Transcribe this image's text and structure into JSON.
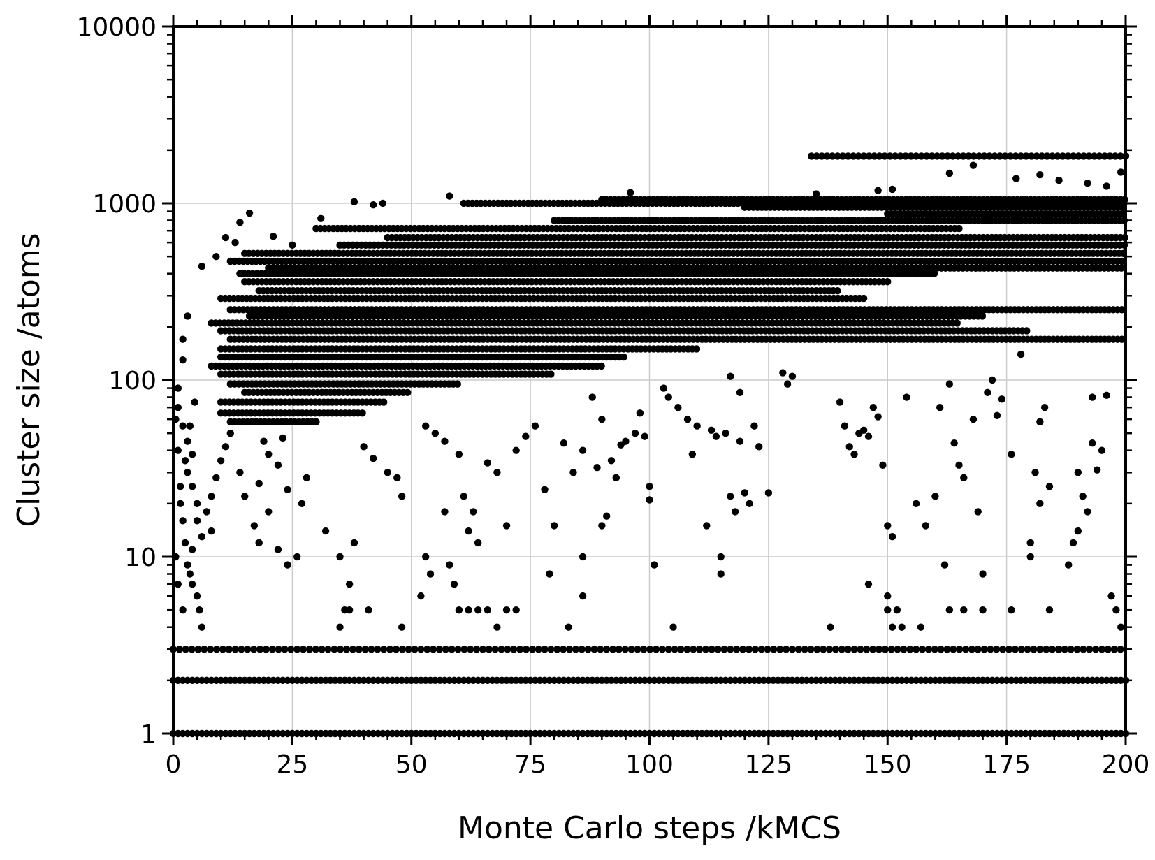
{
  "chart_data": {
    "type": "scatter",
    "title": "",
    "xlabel": "Monte Carlo steps /kMCS",
    "ylabel": "Cluster size /atoms",
    "xlim": [
      0,
      200
    ],
    "ylim": [
      1,
      10000
    ],
    "yscale": "log",
    "grid": true,
    "legend": "none",
    "marker_color": "#000000",
    "xticks": [
      0,
      25,
      50,
      75,
      100,
      125,
      150,
      175,
      200
    ],
    "xtick_labels": [
      "0",
      "25",
      "50",
      "75",
      "100",
      "125",
      "150",
      "175",
      "200"
    ],
    "yticks": [
      1,
      10,
      100,
      1000,
      10000
    ],
    "ytick_labels": [
      "1",
      "10",
      "100",
      "1000",
      "10000"
    ],
    "series": [
      {
        "bands": [
          {
            "y": 1,
            "x": [
              0,
              200
            ],
            "step": 1
          },
          {
            "y": 2,
            "x": [
              0,
              200
            ],
            "step": 1
          },
          {
            "y": 3,
            "x": [
              0,
              200
            ],
            "step": 1.3
          },
          {
            "y": 1850,
            "x": [
              134,
              200
            ],
            "step": 1.1
          },
          {
            "y": 1000,
            "x": [
              61,
              200
            ],
            "step": 0.9
          },
          {
            "y": 1050,
            "x": [
              90,
              200
            ],
            "step": 0.9
          },
          {
            "y": 950,
            "x": [
              120,
              200
            ],
            "step": 0.9
          },
          {
            "y": 870,
            "x": [
              150,
              200
            ],
            "step": 0.9
          },
          {
            "y": 800,
            "x": [
              80,
              200
            ],
            "step": 0.9
          },
          {
            "y": 720,
            "x": [
              30,
              165
            ],
            "step": 0.9
          },
          {
            "y": 640,
            "x": [
              45,
              200
            ],
            "step": 0.9
          },
          {
            "y": 580,
            "x": [
              35,
              200
            ],
            "step": 0.9
          },
          {
            "y": 520,
            "x": [
              15,
              200
            ],
            "step": 0.9
          },
          {
            "y": 470,
            "x": [
              12,
              200
            ],
            "step": 0.9
          },
          {
            "y": 430,
            "x": [
              20,
              200
            ],
            "step": 0.9
          },
          {
            "y": 400,
            "x": [
              14,
              160
            ],
            "step": 0.9
          },
          {
            "y": 360,
            "x": [
              15,
              150
            ],
            "step": 0.9
          },
          {
            "y": 320,
            "x": [
              18,
              140
            ],
            "step": 0.9
          },
          {
            "y": 290,
            "x": [
              10,
              145
            ],
            "step": 0.9
          },
          {
            "y": 250,
            "x": [
              12,
              200
            ],
            "step": 0.9
          },
          {
            "y": 230,
            "x": [
              16,
              170
            ],
            "step": 0.9
          },
          {
            "y": 210,
            "x": [
              8,
              165
            ],
            "step": 0.9
          },
          {
            "y": 190,
            "x": [
              10,
              180
            ],
            "step": 0.9
          },
          {
            "y": 170,
            "x": [
              12,
              200
            ],
            "step": 0.9
          },
          {
            "y": 150,
            "x": [
              10,
              110
            ],
            "step": 0.9
          },
          {
            "y": 135,
            "x": [
              10,
              95
            ],
            "step": 0.9
          },
          {
            "y": 120,
            "x": [
              8,
              90
            ],
            "step": 0.9
          },
          {
            "y": 108,
            "x": [
              10,
              80
            ],
            "step": 0.9
          },
          {
            "y": 95,
            "x": [
              12,
              60
            ],
            "step": 0.9
          },
          {
            "y": 85,
            "x": [
              15,
              50
            ],
            "step": 0.9
          },
          {
            "y": 75,
            "x": [
              10,
              45
            ],
            "step": 0.9
          },
          {
            "y": 65,
            "x": [
              10,
              40
            ],
            "step": 0.9
          },
          {
            "y": 58,
            "x": [
              12,
              30
            ],
            "step": 0.9
          }
        ],
        "scatter": [
          [
            16,
            880
          ],
          [
            14,
            780
          ],
          [
            13,
            600
          ],
          [
            11,
            640
          ],
          [
            9,
            500
          ],
          [
            6,
            440
          ],
          [
            21,
            650
          ],
          [
            25,
            580
          ],
          [
            31,
            820
          ],
          [
            38,
            1020
          ],
          [
            42,
            980
          ],
          [
            44,
            1000
          ],
          [
            58,
            1100
          ],
          [
            96,
            1150
          ],
          [
            135,
            1130
          ],
          [
            148,
            1180
          ],
          [
            151,
            1200
          ],
          [
            163,
            1480
          ],
          [
            168,
            1640
          ],
          [
            177,
            1380
          ],
          [
            182,
            1450
          ],
          [
            186,
            1350
          ],
          [
            192,
            1300
          ],
          [
            196,
            1250
          ],
          [
            199,
            1500
          ],
          [
            2,
            170
          ],
          [
            3,
            230
          ],
          [
            2,
            130
          ],
          [
            1,
            90
          ],
          [
            1,
            70
          ],
          [
            2,
            55
          ],
          [
            3,
            45
          ],
          [
            4,
            38
          ],
          [
            3,
            30
          ],
          [
            4,
            25
          ],
          [
            5,
            20
          ],
          [
            5,
            16
          ],
          [
            6,
            13
          ],
          [
            4,
            11
          ],
          [
            7,
            18
          ],
          [
            8,
            14
          ],
          [
            8,
            22
          ],
          [
            9,
            28
          ],
          [
            10,
            35
          ],
          [
            11,
            42
          ],
          [
            12,
            50
          ],
          [
            0.5,
            60
          ],
          [
            1,
            40
          ],
          [
            1.5,
            25
          ],
          [
            2,
            16
          ],
          [
            2.5,
            12
          ],
          [
            3,
            9
          ],
          [
            3.5,
            8
          ],
          [
            4,
            7
          ],
          [
            5,
            6
          ],
          [
            5.5,
            5
          ],
          [
            6,
            4
          ],
          [
            2,
            5
          ],
          [
            1,
            7
          ],
          [
            0.5,
            10
          ],
          [
            1.5,
            20
          ],
          [
            2.5,
            35
          ],
          [
            3.5,
            55
          ],
          [
            4.5,
            75
          ],
          [
            14,
            30
          ],
          [
            15,
            22
          ],
          [
            17,
            15
          ],
          [
            18,
            12
          ],
          [
            20,
            18
          ],
          [
            22,
            11
          ],
          [
            24,
            9
          ],
          [
            26,
            10
          ],
          [
            18,
            26
          ],
          [
            20,
            38
          ],
          [
            22,
            33
          ],
          [
            24,
            24
          ],
          [
            27,
            20
          ],
          [
            28,
            28
          ],
          [
            19,
            45
          ],
          [
            23,
            47
          ],
          [
            36,
            5
          ],
          [
            37,
            5
          ],
          [
            37,
            7
          ],
          [
            35,
            10
          ],
          [
            32,
            14
          ],
          [
            38,
            12
          ],
          [
            40,
            42
          ],
          [
            42,
            36
          ],
          [
            45,
            30
          ],
          [
            47,
            28
          ],
          [
            48,
            22
          ],
          [
            41,
            5
          ],
          [
            48,
            4
          ],
          [
            35,
            4
          ],
          [
            53,
            55
          ],
          [
            55,
            50
          ],
          [
            57,
            45
          ],
          [
            60,
            38
          ],
          [
            61,
            22
          ],
          [
            63,
            18
          ],
          [
            62,
            14
          ],
          [
            64,
            12
          ],
          [
            66,
            34
          ],
          [
            68,
            30
          ],
          [
            70,
            15
          ],
          [
            72,
            40
          ],
          [
            74,
            48
          ],
          [
            76,
            55
          ],
          [
            78,
            24
          ],
          [
            80,
            15
          ],
          [
            79,
            8
          ],
          [
            82,
            44
          ],
          [
            83,
            4
          ],
          [
            84,
            30
          ],
          [
            86,
            40
          ],
          [
            86,
            10
          ],
          [
            86,
            6
          ],
          [
            88,
            80
          ],
          [
            89,
            32
          ],
          [
            90,
            60
          ],
          [
            90,
            15
          ],
          [
            91,
            17
          ],
          [
            92,
            35
          ],
          [
            93,
            28
          ],
          [
            94,
            43
          ],
          [
            95,
            45
          ],
          [
            97,
            50
          ],
          [
            98,
            65
          ],
          [
            99,
            48
          ],
          [
            100,
            25
          ],
          [
            100,
            21
          ],
          [
            101,
            9
          ],
          [
            57,
            18
          ],
          [
            58,
            9
          ],
          [
            59,
            7
          ],
          [
            60,
            5
          ],
          [
            62,
            5
          ],
          [
            64,
            5
          ],
          [
            66,
            5
          ],
          [
            68,
            4
          ],
          [
            70,
            5
          ],
          [
            72,
            5
          ],
          [
            52,
            6
          ],
          [
            53,
            10
          ],
          [
            54,
            8
          ],
          [
            103,
            90
          ],
          [
            104,
            80
          ],
          [
            106,
            70
          ],
          [
            108,
            60
          ],
          [
            109,
            38
          ],
          [
            110,
            55
          ],
          [
            112,
            15
          ],
          [
            113,
            52
          ],
          [
            114,
            48
          ],
          [
            115,
            10
          ],
          [
            115,
            8
          ],
          [
            116,
            50
          ],
          [
            117,
            22
          ],
          [
            118,
            18
          ],
          [
            119,
            45
          ],
          [
            120,
            23
          ],
          [
            121,
            20
          ],
          [
            123,
            42
          ],
          [
            125,
            23
          ],
          [
            105,
            4
          ],
          [
            117,
            105
          ],
          [
            119,
            85
          ],
          [
            122,
            55
          ],
          [
            128,
            110
          ],
          [
            129,
            95
          ],
          [
            130,
            105
          ],
          [
            138,
            4
          ],
          [
            140,
            75
          ],
          [
            141,
            55
          ],
          [
            142,
            42
          ],
          [
            143,
            38
          ],
          [
            144,
            50
          ],
          [
            145,
            52
          ],
          [
            146,
            48
          ],
          [
            147,
            70
          ],
          [
            148,
            62
          ],
          [
            149,
            33
          ],
          [
            150,
            15
          ],
          [
            151,
            13
          ],
          [
            150,
            6
          ],
          [
            150,
            5
          ],
          [
            151,
            4
          ],
          [
            152,
            5
          ],
          [
            153,
            4
          ],
          [
            146,
            7
          ],
          [
            154,
            80
          ],
          [
            156,
            20
          ],
          [
            157,
            4
          ],
          [
            158,
            15
          ],
          [
            160,
            22
          ],
          [
            161,
            70
          ],
          [
            162,
            9
          ],
          [
            163,
            95
          ],
          [
            164,
            44
          ],
          [
            165,
            33
          ],
          [
            166,
            28
          ],
          [
            168,
            60
          ],
          [
            169,
            18
          ],
          [
            170,
            8
          ],
          [
            171,
            85
          ],
          [
            172,
            100
          ],
          [
            173,
            63
          ],
          [
            174,
            78
          ],
          [
            176,
            38
          ],
          [
            178,
            140
          ],
          [
            180,
            12
          ],
          [
            180,
            10
          ],
          [
            181,
            30
          ],
          [
            182,
            20
          ],
          [
            182,
            58
          ],
          [
            183,
            70
          ],
          [
            184,
            25
          ],
          [
            186,
            3
          ],
          [
            188,
            9
          ],
          [
            189,
            12
          ],
          [
            190,
            30
          ],
          [
            191,
            22
          ],
          [
            192,
            18
          ],
          [
            193,
            44
          ],
          [
            194,
            31
          ],
          [
            195,
            40
          ],
          [
            197,
            6
          ],
          [
            198,
            5
          ],
          [
            199,
            4
          ],
          [
            196,
            82
          ],
          [
            193,
            80
          ],
          [
            190,
            14
          ],
          [
            184,
            5
          ],
          [
            176,
            5
          ],
          [
            170,
            5
          ],
          [
            166,
            5
          ],
          [
            163,
            5
          ]
        ]
      }
    ]
  }
}
